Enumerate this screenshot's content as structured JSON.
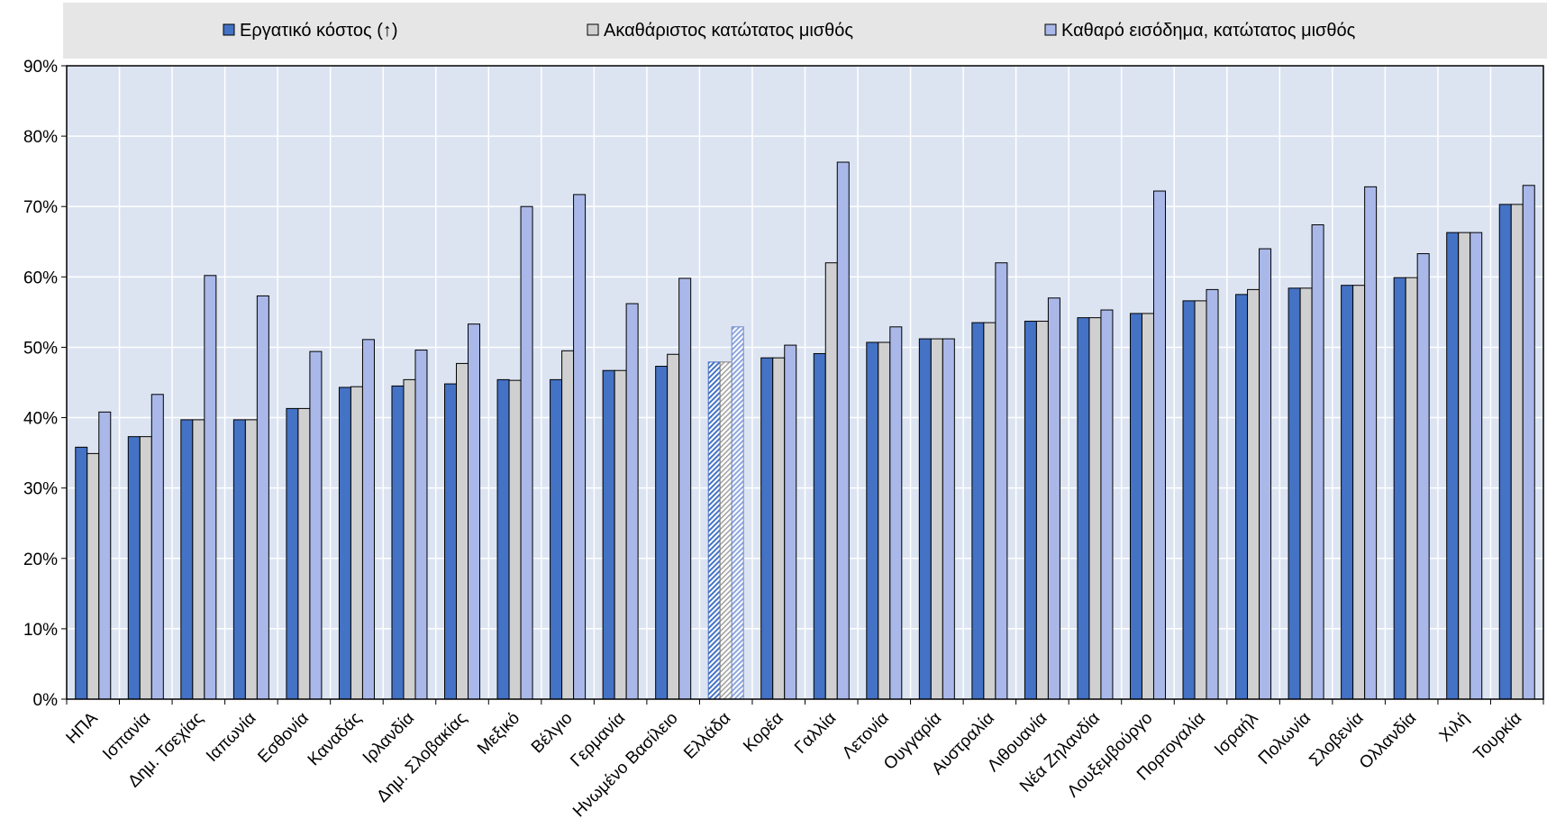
{
  "chart_data": {
    "type": "bar",
    "colors": {
      "series1": "#4472C4",
      "series2": "#D0D0D0",
      "series3": "#A9B8E8",
      "plot_bg": "#DCE4F2",
      "legend_bg": "#E6E6E6",
      "grid": "#FFFFFF",
      "border": "#000000"
    },
    "legend_position": "top",
    "grid": true,
    "ylim": [
      0,
      90
    ],
    "yticks": [
      0,
      10,
      20,
      30,
      40,
      50,
      60,
      70,
      80,
      90
    ],
    "ytick_labels": [
      "0%",
      "10%",
      "20%",
      "30%",
      "40%",
      "50%",
      "60%",
      "70%",
      "80%",
      "90%"
    ],
    "highlight_category": "Ελλάδα",
    "categories": [
      "ΗΠΑ",
      "Ισπανία",
      "Δημ. Τσεχίας",
      "Ιαπωνία",
      "Εσθονία",
      "Καναδάς",
      "Ιρλανδία",
      "Δημ. Σλοβακίας",
      "Μεξικό",
      "Βέλγιο",
      "Γερμανία",
      "Ηνωμένο Βασίλειο",
      "Ελλάδα",
      "Κορέα",
      "Γαλλία",
      "Λετονία",
      "Ουγγαρία",
      "Αυστραλία",
      "Λιθουανία",
      "Νέα Ζηλανδία",
      "Λουξεμβούργο",
      "Πορτογαλία",
      "Ισραήλ",
      "Πολωνία",
      "Σλοβενία",
      "Ολλανδία",
      "Χιλή",
      "Τουρκία"
    ],
    "series": [
      {
        "name": "Εργατικό κόστος  (↑)",
        "values": [
          35.8,
          37.3,
          39.7,
          39.7,
          41.3,
          44.3,
          44.5,
          44.8,
          45.4,
          45.4,
          46.7,
          47.3,
          47.9,
          48.5,
          49.1,
          50.7,
          51.2,
          53.5,
          53.7,
          54.2,
          54.8,
          56.6,
          57.5,
          58.4,
          58.8,
          59.9,
          66.3,
          70.3
        ]
      },
      {
        "name": "Ακαθάριστος κατώτατος μισθός",
        "values": [
          34.9,
          37.3,
          39.7,
          39.7,
          41.3,
          44.4,
          45.4,
          47.7,
          45.3,
          49.5,
          46.7,
          49.0,
          47.9,
          48.5,
          62.0,
          50.7,
          51.2,
          53.5,
          53.7,
          54.2,
          54.8,
          56.6,
          58.2,
          58.4,
          58.8,
          59.9,
          66.3,
          70.3
        ]
      },
      {
        "name": "Καθαρό εισόδημα, κατώτατος μισθός",
        "values": [
          40.8,
          43.3,
          60.2,
          57.3,
          49.4,
          51.1,
          49.6,
          53.3,
          70.0,
          71.7,
          56.2,
          59.8,
          52.9,
          50.3,
          76.3,
          52.9,
          51.2,
          62.0,
          57.0,
          55.3,
          72.2,
          58.2,
          64.0,
          67.4,
          72.8,
          63.3,
          66.3,
          73.0
        ]
      }
    ]
  }
}
